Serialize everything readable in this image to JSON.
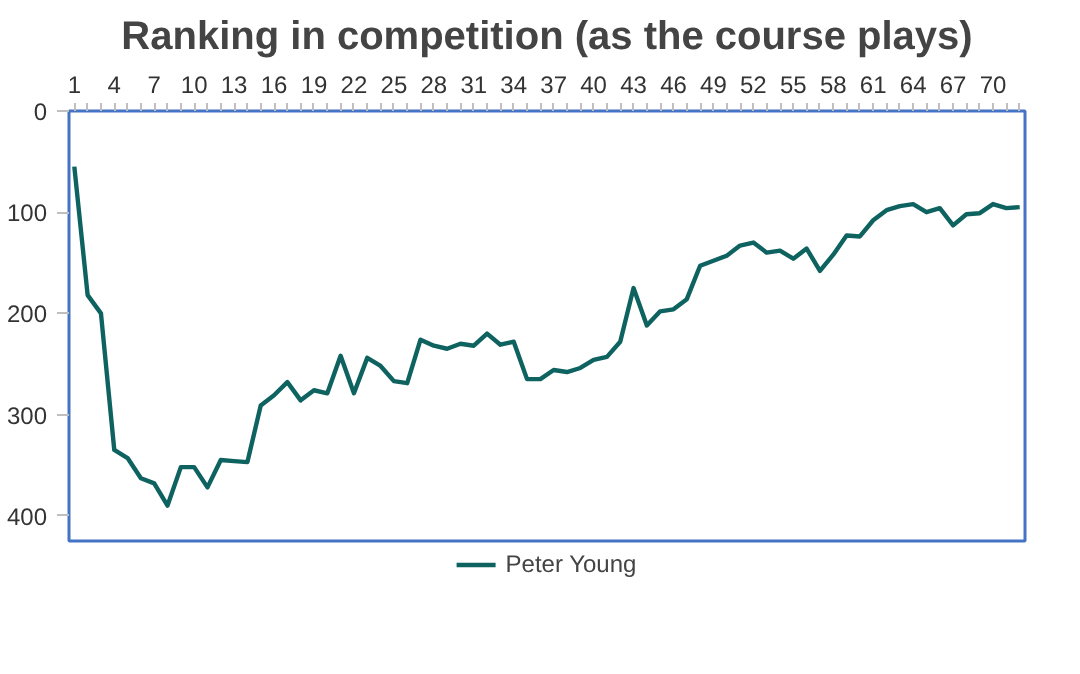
{
  "chart_data": {
    "type": "line",
    "title": "Ranking in competition (as the course plays)",
    "categories": [
      "1",
      null,
      null,
      "4",
      null,
      null,
      "7",
      null,
      null,
      "10",
      null,
      null,
      "13",
      null,
      null,
      "16",
      null,
      null,
      "19",
      null,
      null,
      "22",
      null,
      null,
      "25",
      null,
      null,
      "28",
      null,
      null,
      "31",
      null,
      null,
      "34",
      null,
      null,
      "37",
      null,
      null,
      "40",
      null,
      null,
      "43",
      null,
      null,
      "46",
      null,
      null,
      "49",
      null,
      null,
      "52",
      null,
      null,
      "55",
      null,
      null,
      "58",
      null,
      null,
      "61",
      null,
      null,
      "64",
      null,
      null,
      "67",
      null,
      null,
      "70",
      null,
      null
    ],
    "series": [
      {
        "name": "Peter Young",
        "color": "#0e6360",
        "values": [
          55,
          182,
          200,
          335,
          343,
          363,
          368,
          390,
          352,
          352,
          372,
          345,
          346,
          347,
          291,
          281,
          268,
          286,
          276,
          279,
          242,
          279,
          244,
          252,
          267,
          269,
          226,
          232,
          235,
          230,
          232,
          220,
          231,
          228,
          265,
          265,
          256,
          258,
          254,
          246,
          243,
          228,
          175,
          212,
          198,
          196,
          186,
          153,
          148,
          143,
          133,
          130,
          140,
          138,
          146,
          136,
          158,
          142,
          123,
          124,
          108,
          98,
          94,
          92,
          100,
          96,
          113,
          102,
          101,
          92,
          96,
          95
        ]
      }
    ],
    "ylim": [
      425,
      0
    ],
    "yticks": [
      0,
      100,
      200,
      300,
      400
    ],
    "grid": false,
    "legend": "bottom",
    "marker": "none",
    "line_style": "solid"
  }
}
